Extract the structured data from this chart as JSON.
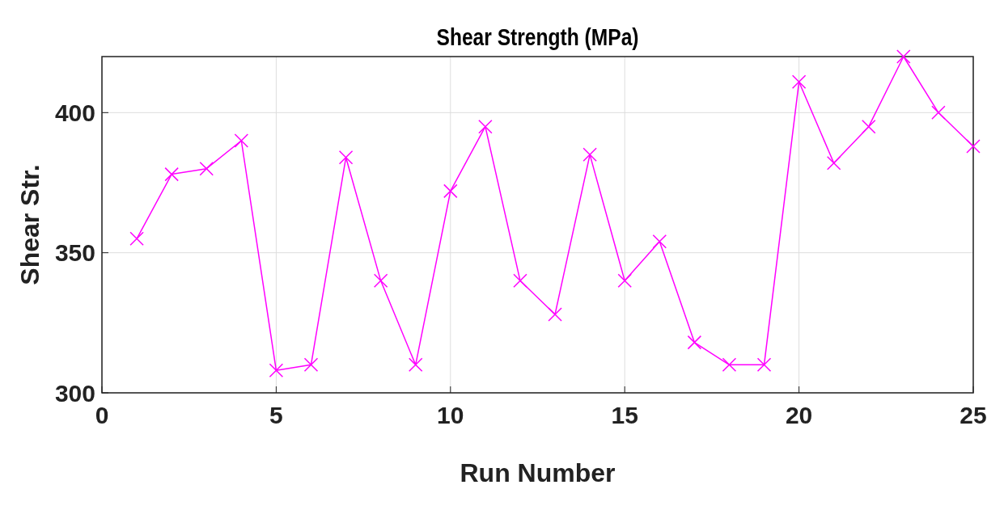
{
  "chart_data": {
    "type": "line",
    "title": "Shear Strength (MPa)",
    "xlabel": "Run Number",
    "ylabel": "Shear Str.",
    "x": [
      1,
      2,
      3,
      4,
      5,
      6,
      7,
      8,
      9,
      10,
      11,
      12,
      13,
      14,
      15,
      16,
      17,
      18,
      19,
      20,
      21,
      22,
      23,
      24,
      25
    ],
    "series": [
      {
        "color": "#ff00ff",
        "values": [
          355,
          378,
          380,
          390,
          308,
          310,
          384,
          340,
          310,
          372,
          395,
          340,
          328,
          385,
          340,
          354,
          318,
          310,
          310,
          411,
          382,
          395,
          420,
          400,
          388
        ]
      }
    ],
    "xlim": [
      0,
      25
    ],
    "xticks": [
      0,
      5,
      10,
      15,
      20,
      25
    ],
    "ylim": [
      300,
      420
    ],
    "yticks": [
      300,
      350,
      400
    ],
    "grid": true,
    "marker": "cross",
    "line_style": "solid"
  }
}
